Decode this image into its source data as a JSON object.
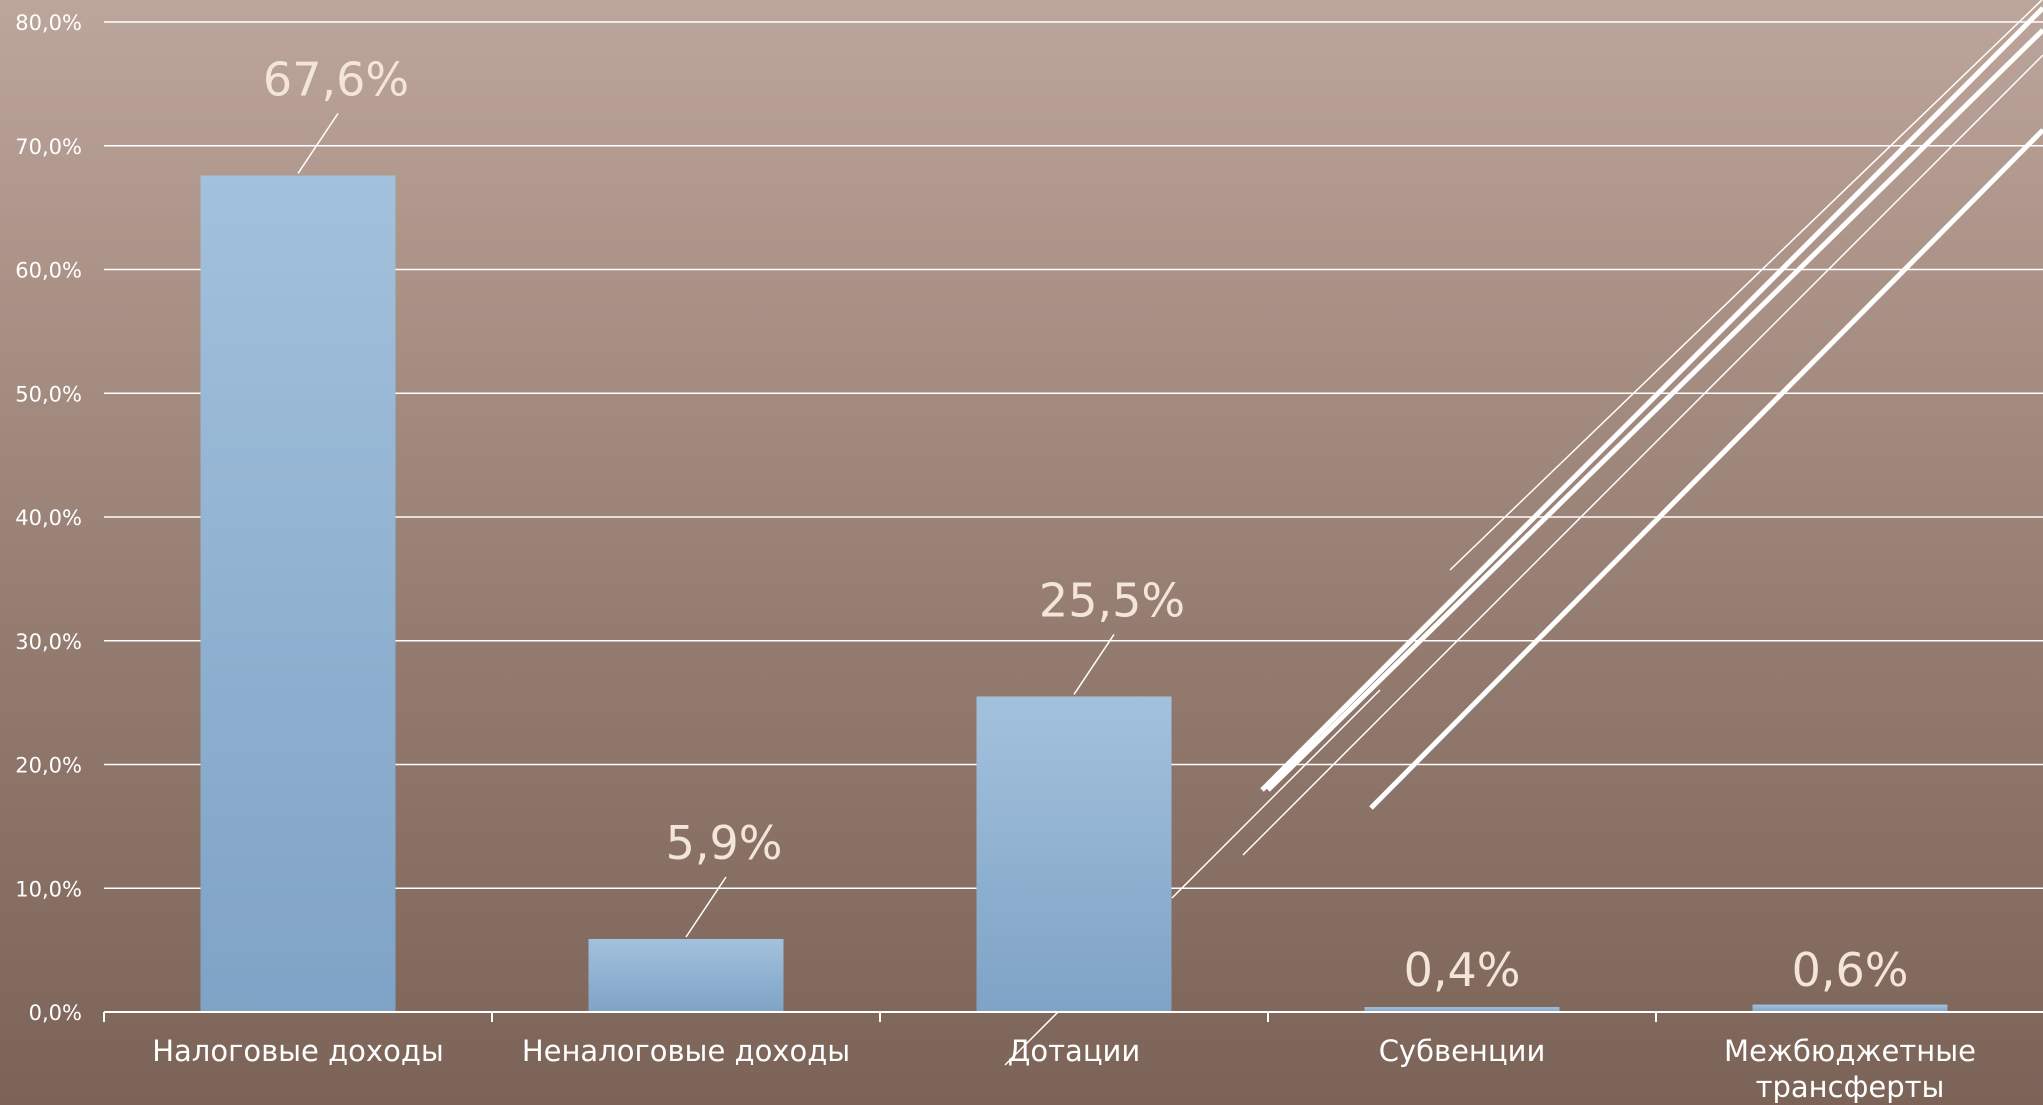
{
  "chart_data": {
    "type": "bar",
    "categories": [
      "Налоговые доходы",
      "Неналоговые доходы",
      "Дотации",
      "Субвенции",
      "Межбюджетные трансферты"
    ],
    "category_label_lines": [
      [
        "Налоговые доходы"
      ],
      [
        "Неналоговые доходы"
      ],
      [
        "Дотации"
      ],
      [
        "Субвенции"
      ],
      [
        "Межбюджетные",
        "трансферты"
      ]
    ],
    "values": [
      67.6,
      5.9,
      25.5,
      0.4,
      0.6
    ],
    "data_labels": [
      "67,6%",
      "5,9%",
      "25,5%",
      "0,4%",
      "0,6%"
    ],
    "y_ticks": [
      {
        "value": 0,
        "label": "0,0%"
      },
      {
        "value": 10,
        "label": "10,0%"
      },
      {
        "value": 20,
        "label": "20,0%"
      },
      {
        "value": 30,
        "label": "30,0%"
      },
      {
        "value": 40,
        "label": "40,0%"
      },
      {
        "value": 50,
        "label": "50,0%"
      },
      {
        "value": 60,
        "label": "60,0%"
      },
      {
        "value": 70,
        "label": "70,0%"
      },
      {
        "value": 80,
        "label": "80,0%"
      }
    ],
    "ylim": [
      0,
      80
    ],
    "grid": true,
    "title": "",
    "xlabel": "",
    "ylabel": "",
    "colors": {
      "bar_top": "#a2c1dc",
      "bar_bottom": "#7fa3c6",
      "grid": "#ffffff",
      "data_label": "#f3e6d9",
      "axis_text": "#ffffff"
    }
  }
}
